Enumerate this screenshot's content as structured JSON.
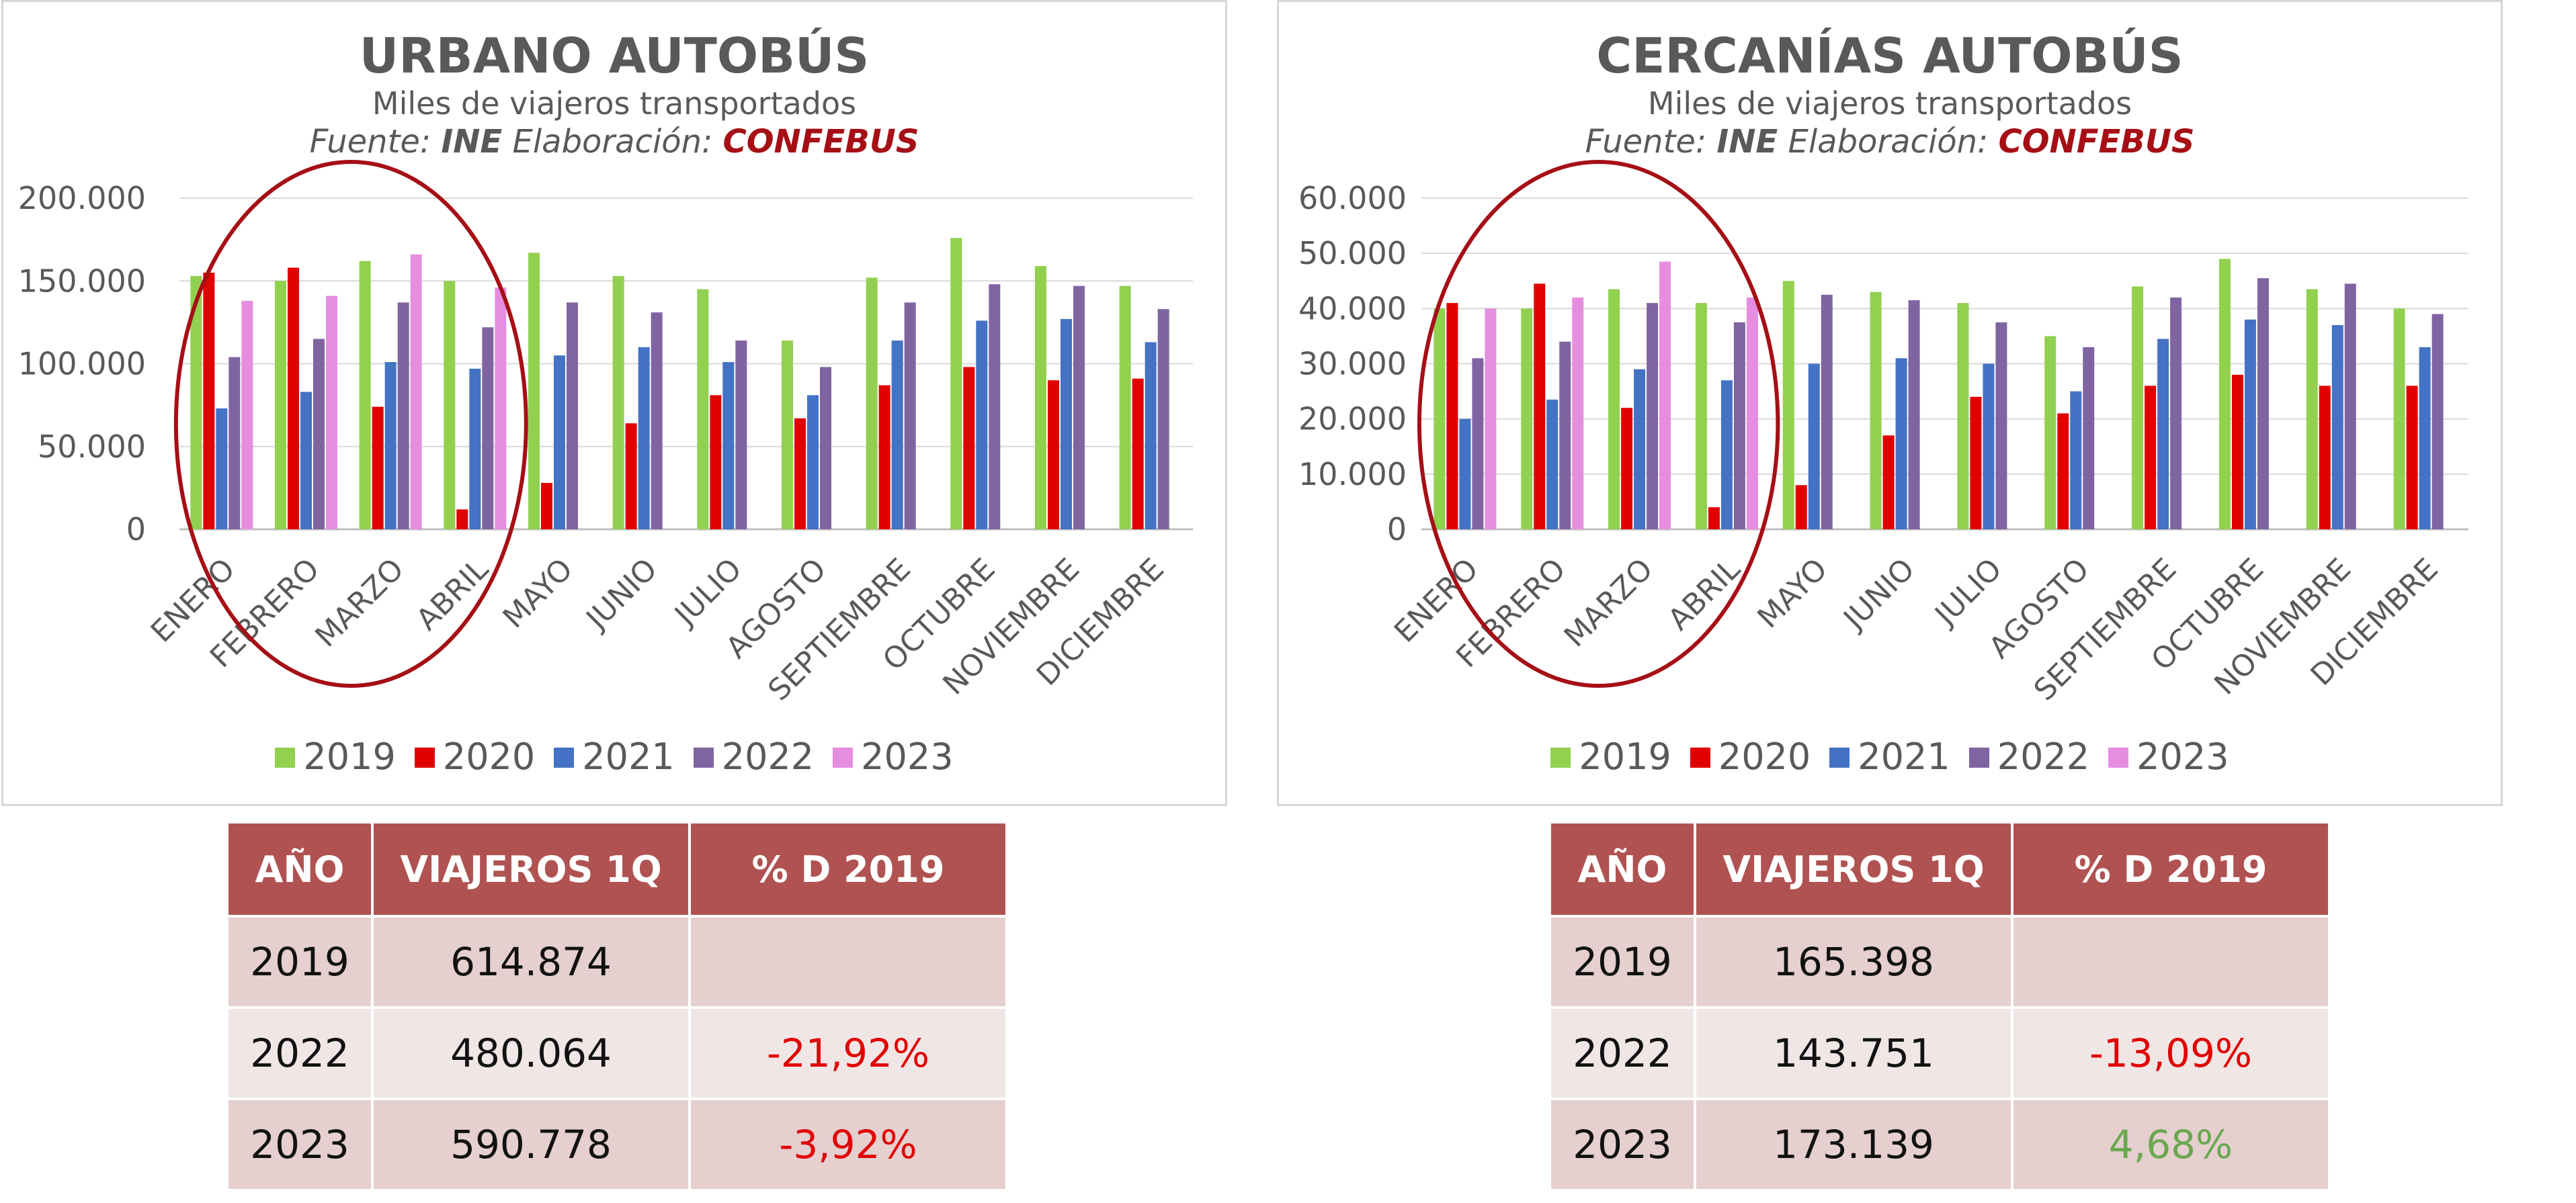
{
  "legend_colors": {
    "2019": "#92d050",
    "2020": "#e00000",
    "2021": "#4472c4",
    "2022": "#8064a2",
    "2023": "#e58ee0"
  },
  "circle_color": "#a50f15",
  "chart_data": [
    {
      "type": "bar",
      "title": "URBANO AUTOBÚS",
      "subtitle": "Miles de viajeros transportados",
      "source": {
        "label_1": "Fuente:",
        "value_1": "INE",
        "label_2": "Elaboración:",
        "value_2": "CONFEBUS"
      },
      "categories": [
        "ENERO",
        "FEBRERO",
        "MARZO",
        "ABRIL",
        "MAYO",
        "JUNIO",
        "JULIO",
        "AGOSTO",
        "SEPTIEMBRE",
        "OCTUBRE",
        "NOVIEMBRE",
        "DICIEMBRE"
      ],
      "ylim": [
        0,
        200000
      ],
      "yticks": [
        0,
        50000,
        100000,
        150000,
        200000
      ],
      "ytick_labels": [
        "0",
        "50.000",
        "100.000",
        "150.000",
        "200.000"
      ],
      "grid": true,
      "legend_position": "bottom",
      "highlight": "ellipse around ENERO–ABRIL",
      "series": [
        {
          "name": "2019",
          "values": [
            153000,
            150000,
            162000,
            150000,
            167000,
            153000,
            145000,
            114000,
            152000,
            176000,
            159000,
            147000
          ]
        },
        {
          "name": "2020",
          "values": [
            155000,
            158000,
            74000,
            12000,
            28000,
            64000,
            81000,
            67000,
            87000,
            98000,
            90000,
            91000
          ]
        },
        {
          "name": "2021",
          "values": [
            73000,
            83000,
            101000,
            97000,
            105000,
            110000,
            101000,
            81000,
            114000,
            126000,
            127000,
            113000
          ]
        },
        {
          "name": "2022",
          "values": [
            104000,
            115000,
            137000,
            122000,
            137000,
            131000,
            114000,
            98000,
            137000,
            148000,
            147000,
            133000
          ]
        },
        {
          "name": "2023",
          "values": [
            138000,
            141000,
            166000,
            146000,
            null,
            null,
            null,
            null,
            null,
            null,
            null,
            null
          ]
        }
      ]
    },
    {
      "type": "bar",
      "title": "CERCANÍAS AUTOBÚS",
      "subtitle": "Miles de viajeros transportados",
      "source": {
        "label_1": "Fuente:",
        "value_1": "INE",
        "label_2": "Elaboración:",
        "value_2": "CONFEBUS"
      },
      "categories": [
        "ENERO",
        "FEBRERO",
        "MARZO",
        "ABRIL",
        "MAYO",
        "JUNIO",
        "JULIO",
        "AGOSTO",
        "SEPTIEMBRE",
        "OCTUBRE",
        "NOVIEMBRE",
        "DICIEMBRE"
      ],
      "ylim": [
        0,
        60000
      ],
      "yticks": [
        0,
        10000,
        20000,
        30000,
        40000,
        50000,
        60000
      ],
      "ytick_labels": [
        "0",
        "10.000",
        "20.000",
        "30.000",
        "40.000",
        "50.000",
        "60.000"
      ],
      "grid": true,
      "legend_position": "bottom",
      "highlight": "ellipse around ENERO–ABRIL",
      "series": [
        {
          "name": "2019",
          "values": [
            40000,
            40000,
            43500,
            41000,
            45000,
            43000,
            41000,
            35000,
            44000,
            49000,
            43500,
            40000
          ]
        },
        {
          "name": "2020",
          "values": [
            41000,
            44500,
            22000,
            4000,
            8000,
            17000,
            24000,
            21000,
            26000,
            28000,
            26000,
            26000
          ]
        },
        {
          "name": "2021",
          "values": [
            20000,
            23500,
            29000,
            27000,
            30000,
            31000,
            30000,
            25000,
            34500,
            38000,
            37000,
            33000
          ]
        },
        {
          "name": "2022",
          "values": [
            31000,
            34000,
            41000,
            37500,
            42500,
            41500,
            37500,
            33000,
            42000,
            45500,
            44500,
            39000
          ]
        },
        {
          "name": "2023",
          "values": [
            40000,
            42000,
            48500,
            42000,
            null,
            null,
            null,
            null,
            null,
            null,
            null,
            null
          ]
        }
      ]
    }
  ],
  "tables": [
    {
      "headers": [
        "AÑO",
        "VIAJEROS 1Q",
        "% D 2019"
      ],
      "rows": [
        {
          "year": "2019",
          "travelers": "614.874",
          "pct": "",
          "pct_sign": "none"
        },
        {
          "year": "2022",
          "travelers": "480.064",
          "pct": "-21,92%",
          "pct_sign": "neg"
        },
        {
          "year": "2023",
          "travelers": "590.778",
          "pct": "-3,92%",
          "pct_sign": "neg"
        }
      ]
    },
    {
      "headers": [
        "AÑO",
        "VIAJEROS 1Q",
        "% D 2019"
      ],
      "rows": [
        {
          "year": "2019",
          "travelers": "165.398",
          "pct": "",
          "pct_sign": "none"
        },
        {
          "year": "2022",
          "travelers": "143.751",
          "pct": "-13,09%",
          "pct_sign": "neg"
        },
        {
          "year": "2023",
          "travelers": "173.139",
          "pct": "4,68%",
          "pct_sign": "pos"
        }
      ]
    }
  ]
}
